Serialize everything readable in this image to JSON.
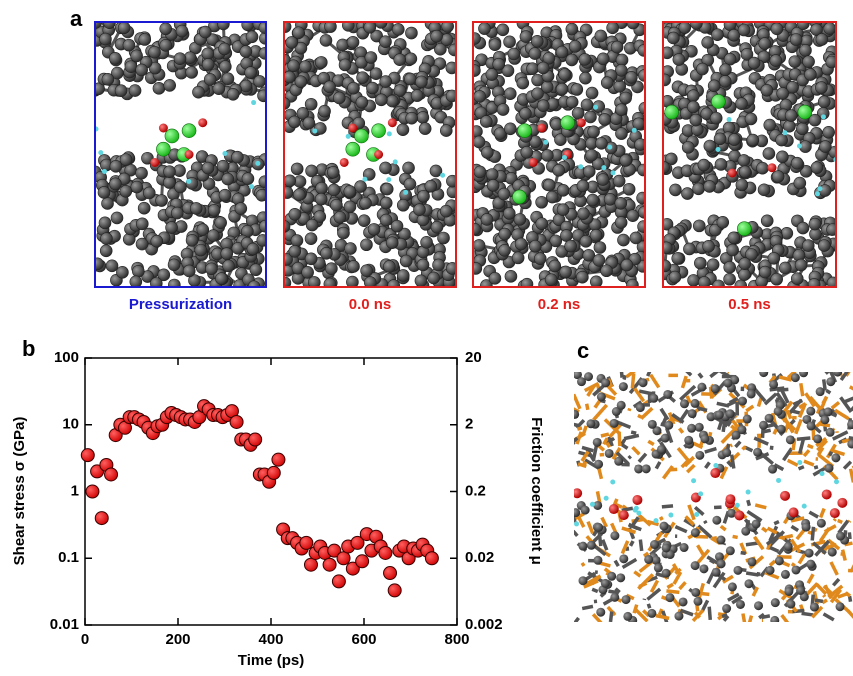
{
  "panel_labels": [
    "a",
    "b",
    "c"
  ],
  "snapshots": [
    {
      "caption": "Pressurization",
      "color": "#1a1ad0"
    },
    {
      "caption": "0.0 ns",
      "color": "#e0201e"
    },
    {
      "caption": "0.2 ns",
      "color": "#e0201e"
    },
    {
      "caption": "0.5 ns",
      "color": "#e0201e"
    }
  ],
  "chart_data": {
    "type": "scatter",
    "xlabel": "Time (ps)",
    "ylabel": "Shear stress σ (GPa)",
    "y2label": "Friction coefficient μ",
    "color": "#e00000",
    "log_y": true,
    "xlim": [
      0,
      800
    ],
    "xticks": [
      0,
      200,
      400,
      600,
      800
    ],
    "ylim": [
      0.01,
      100
    ],
    "yticks": [
      0.01,
      0.1,
      1,
      10,
      100
    ],
    "y2lim": [
      0.002,
      20
    ],
    "y2ticks": [
      0.002,
      0.02,
      0.2,
      2,
      20
    ],
    "x": [
      6,
      16,
      26,
      36,
      46,
      56,
      66,
      76,
      86,
      96,
      106,
      116,
      126,
      136,
      146,
      156,
      166,
      176,
      186,
      196,
      206,
      216,
      226,
      236,
      246,
      256,
      266,
      276,
      286,
      296,
      306,
      316,
      326,
      336,
      346,
      356,
      366,
      376,
      386,
      396,
      406,
      416,
      426,
      436,
      446,
      456,
      466,
      476,
      486,
      496,
      506,
      516,
      526,
      536,
      546,
      556,
      566,
      576,
      586,
      596,
      606,
      616,
      626,
      636,
      646,
      656,
      666,
      676,
      686,
      696,
      706,
      716,
      726,
      736,
      746
    ],
    "values": [
      3.5,
      1.0,
      2.0,
      0.4,
      2.5,
      1.8,
      7,
      10,
      9,
      13,
      13,
      12,
      11,
      9,
      7.5,
      9.5,
      10,
      13,
      15,
      14,
      13,
      12,
      12,
      11,
      13,
      19,
      17,
      14,
      14,
      13,
      14,
      16,
      11,
      6,
      6,
      5,
      6,
      1.8,
      1.8,
      1.4,
      1.9,
      3,
      0.27,
      0.2,
      0.2,
      0.17,
      0.14,
      0.17,
      0.08,
      0.12,
      0.15,
      0.12,
      0.08,
      0.13,
      0.045,
      0.1,
      0.15,
      0.07,
      0.17,
      0.09,
      0.23,
      0.13,
      0.21,
      0.15,
      0.12,
      0.06,
      0.033,
      0.13,
      0.15,
      0.1,
      0.14,
      0.13,
      0.16,
      0.13,
      0.1
    ]
  }
}
